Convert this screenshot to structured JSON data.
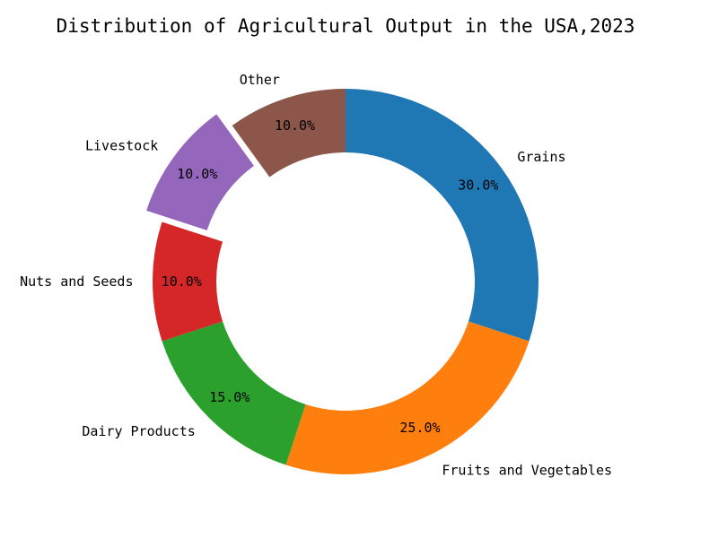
{
  "chart_data": {
    "type": "pie",
    "style": "donut",
    "title": "Distribution of Agricultural Output in the USA,2023",
    "categories": [
      "Grains",
      "Fruits and Vegetables",
      "Dairy Products",
      "Nuts and Seeds",
      "Livestock",
      "Other"
    ],
    "values": [
      30.0,
      25.0,
      15.0,
      10.0,
      10.0,
      10.0
    ],
    "value_labels": [
      "30.0%",
      "25.0%",
      "15.0%",
      "10.0%",
      "10.0%",
      "10.0%"
    ],
    "colors": [
      "#1f77b4",
      "#ff7f0e",
      "#2ca02c",
      "#d62728",
      "#9467bd",
      "#8c564b"
    ],
    "exploded": [
      false,
      false,
      false,
      false,
      true,
      false
    ],
    "start_angle_deg": 90,
    "direction": "clockwise",
    "legend": "none"
  }
}
